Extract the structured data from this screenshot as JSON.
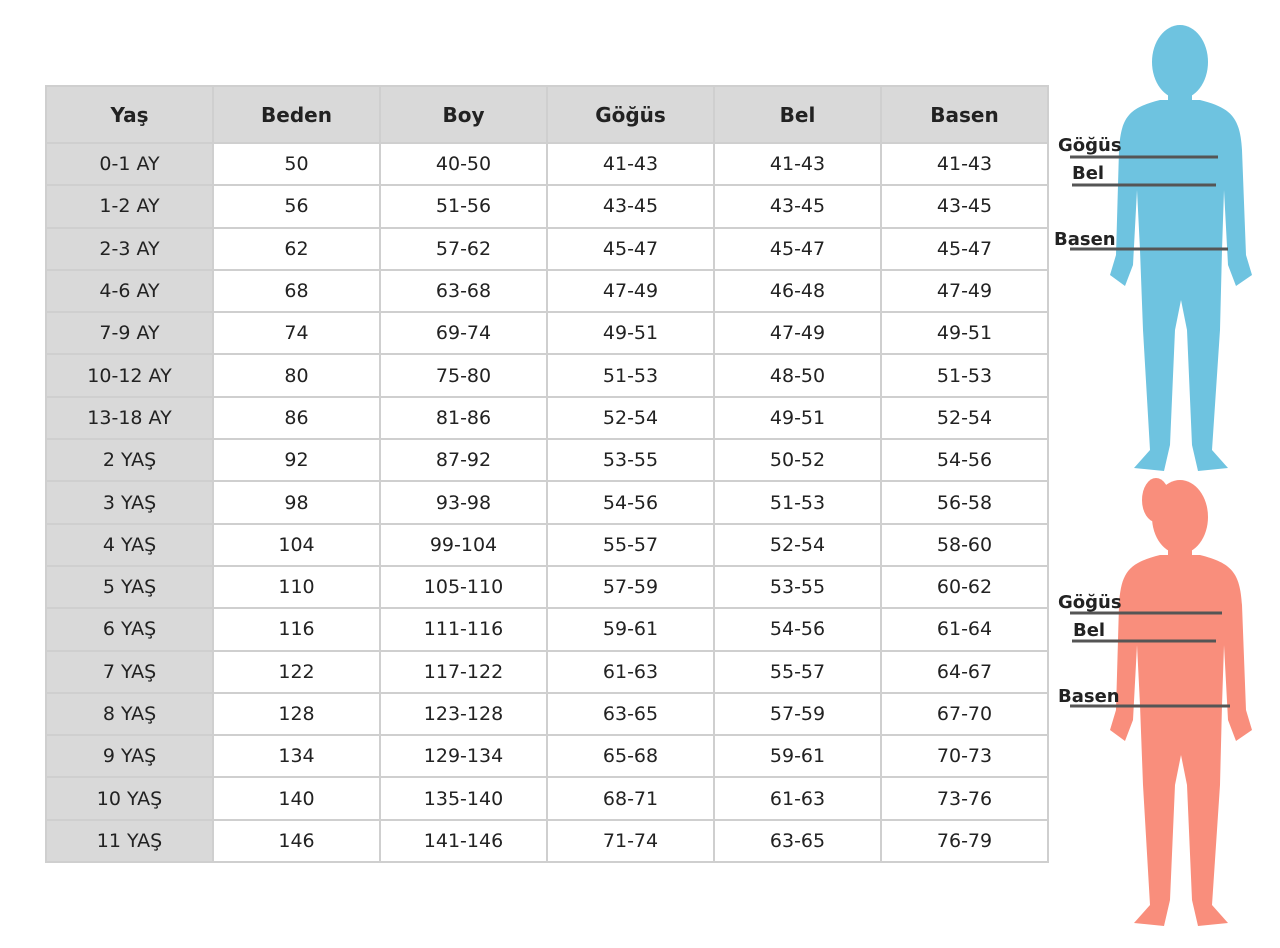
{
  "table": {
    "header": [
      "Yaş",
      "Beden",
      "Boy",
      "Göğüs",
      "Bel",
      "Basen"
    ],
    "rows": [
      [
        "0-1 AY",
        "50",
        "40-50",
        "41-43",
        "41-43",
        "41-43"
      ],
      [
        "1-2 AY",
        "56",
        "51-56",
        "43-45",
        "43-45",
        "43-45"
      ],
      [
        "2-3 AY",
        "62",
        "57-62",
        "45-47",
        "45-47",
        "45-47"
      ],
      [
        "4-6 AY",
        "68",
        "63-68",
        "47-49",
        "46-48",
        "47-49"
      ],
      [
        "7-9 AY",
        "74",
        "69-74",
        "49-51",
        "47-49",
        "49-51"
      ],
      [
        "10-12 AY",
        "80",
        "75-80",
        "51-53",
        "48-50",
        "51-53"
      ],
      [
        "13-18 AY",
        "86",
        "81-86",
        "52-54",
        "49-51",
        "52-54"
      ],
      [
        "2 YAŞ",
        "92",
        "87-92",
        "53-55",
        "50-52",
        "54-56"
      ],
      [
        "3 YAŞ",
        "98",
        "93-98",
        "54-56",
        "51-53",
        "56-58"
      ],
      [
        "4 YAŞ",
        "104",
        "99-104",
        "55-57",
        "52-54",
        "58-60"
      ],
      [
        "5 YAŞ",
        "110",
        "105-110",
        "57-59",
        "53-55",
        "60-62"
      ],
      [
        "6 YAŞ",
        "116",
        "111-116",
        "59-61",
        "54-56",
        "61-64"
      ],
      [
        "7 YAŞ",
        "122",
        "117-122",
        "61-63",
        "55-57",
        "64-67"
      ],
      [
        "8 YAŞ",
        "128",
        "123-128",
        "63-65",
        "57-59",
        "67-70"
      ],
      [
        "9 YAŞ",
        "134",
        "129-134",
        "65-68",
        "59-61",
        "70-73"
      ],
      [
        "10 YAŞ",
        "140",
        "135-140",
        "68-71",
        "61-63",
        "73-76"
      ],
      [
        "11 YAŞ",
        "146",
        "141-146",
        "71-74",
        "63-65",
        "76-79"
      ]
    ]
  },
  "figures": [
    {
      "labels": [
        "Göğüs",
        "Bel",
        "Basen"
      ]
    },
    {
      "labels": [
        "Göğüs",
        "Bel",
        "Basen"
      ]
    }
  ]
}
